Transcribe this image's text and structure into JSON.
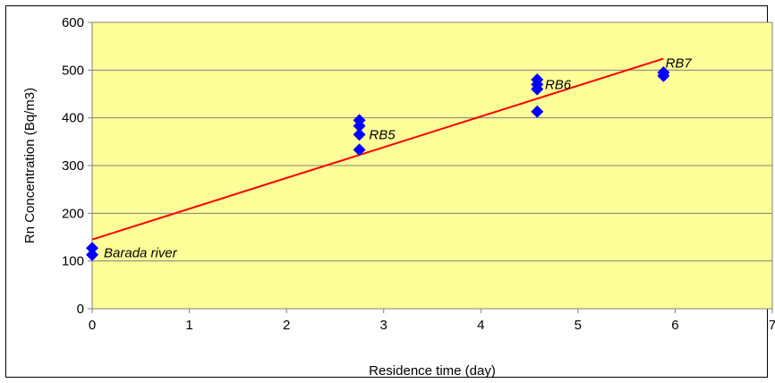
{
  "chart_data": {
    "type": "scatter",
    "title": "",
    "xlabel": "Residence time (day)",
    "ylabel": "Rn Concentration (Bq/m3)",
    "xlim": [
      0,
      7
    ],
    "ylim": [
      0,
      600
    ],
    "xticks": [
      0,
      1,
      2,
      3,
      4,
      5,
      6,
      7
    ],
    "yticks": [
      0,
      100,
      200,
      300,
      400,
      500,
      600
    ],
    "grid": "horizontal",
    "legend": "none",
    "colors": {
      "plot_bg": "#ffff99",
      "marker": "#0000ff",
      "trendline": "#ff0000",
      "grid": "#808080"
    },
    "series": [
      {
        "marker": "diamond",
        "points": [
          {
            "x": 0,
            "y": 127
          },
          {
            "x": 0,
            "y": 113
          },
          {
            "x": 2.75,
            "y": 395
          },
          {
            "x": 2.75,
            "y": 383
          },
          {
            "x": 2.75,
            "y": 365
          },
          {
            "x": 2.75,
            "y": 333
          },
          {
            "x": 4.58,
            "y": 480
          },
          {
            "x": 4.58,
            "y": 470
          },
          {
            "x": 4.58,
            "y": 460
          },
          {
            "x": 4.58,
            "y": 413
          },
          {
            "x": 5.88,
            "y": 495
          },
          {
            "x": 5.88,
            "y": 488
          }
        ]
      }
    ],
    "trendline": {
      "type": "linear",
      "x": [
        0,
        5.88
      ],
      "y": [
        145,
        524
      ]
    },
    "annotations": [
      {
        "text": "Barada river",
        "x": 0.12,
        "y": 117
      },
      {
        "text": "RB5",
        "x": 2.85,
        "y": 365
      },
      {
        "text": "RB6",
        "x": 4.66,
        "y": 470
      },
      {
        "text": "RB7",
        "x": 5.9,
        "y": 515
      }
    ]
  }
}
